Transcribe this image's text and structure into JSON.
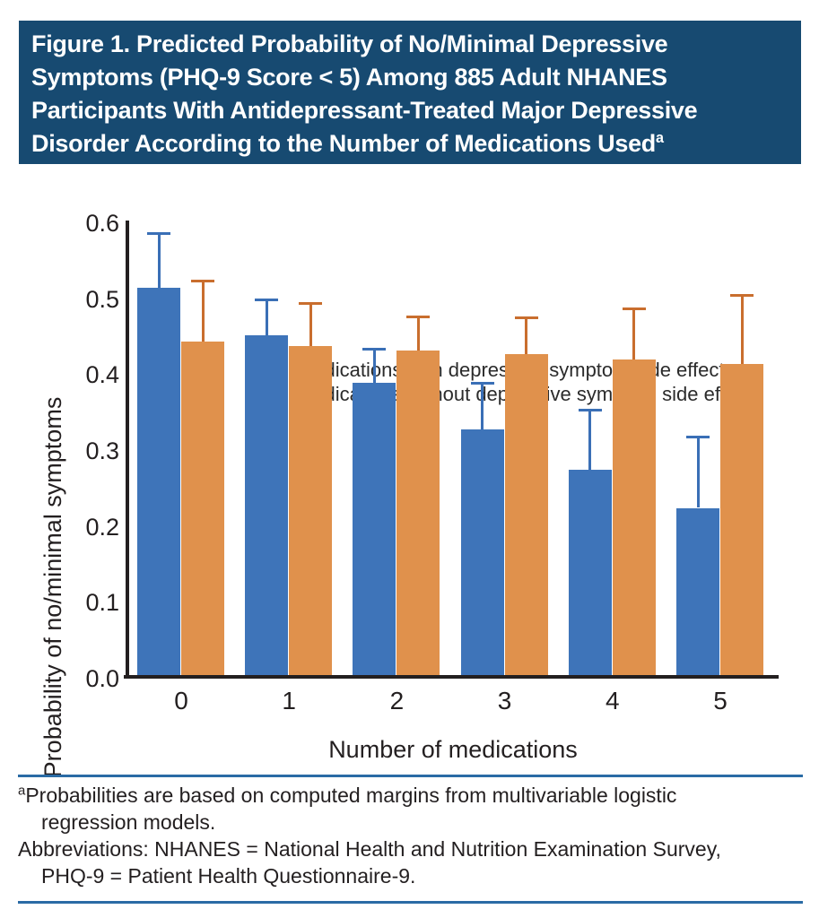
{
  "header": {
    "title": "Figure 1. Predicted Probability of No/Minimal Depressive Symptoms (PHQ-9 Score < 5) Among 885 Adult NHANES Participants With Antidepressant-Treated Major Depressive Disorder According to the Number of Medications Used",
    "title_superscript": "a"
  },
  "chart_data": {
    "type": "bar",
    "title": "",
    "categories": [
      "0",
      "1",
      "2",
      "3",
      "4",
      "5"
    ],
    "xlabel": "Number of medications",
    "ylabel": "Probability of no/minimal symptoms",
    "ylim": [
      0,
      0.6
    ],
    "ytick_labels": [
      "0.0",
      "0.1",
      "0.2",
      "0.3",
      "0.4",
      "0.5",
      "0.6"
    ],
    "ytick_values": [
      0,
      0.1,
      0.2,
      0.3,
      0.4,
      0.5,
      0.6
    ],
    "grid": false,
    "legend_position": "top",
    "error_bars": "upper only, 95% CI caps",
    "series": [
      {
        "name": "Medications with depressive symptom side effects",
        "color": "#3e74b9",
        "error_color": "#3a6fb6",
        "values": [
          0.515,
          0.452,
          0.39,
          0.328,
          0.275,
          0.225
        ],
        "upper_ci": [
          0.586,
          0.499,
          0.433,
          0.389,
          0.353,
          0.318
        ]
      },
      {
        "name": "Medications without depressive symptom side effects",
        "color": "#e0914c",
        "error_color": "#c96e2e",
        "values": [
          0.444,
          0.438,
          0.432,
          0.427,
          0.421,
          0.415
        ],
        "upper_ci": [
          0.523,
          0.494,
          0.476,
          0.475,
          0.487,
          0.504
        ]
      }
    ]
  },
  "footnotes": {
    "note_marker": "a",
    "note_text": "Probabilities are based on computed margins from multivariable logistic regression models.",
    "abbreviations": "Abbreviations: NHANES = National Health and Nutrition Examination Survey, PHQ-9 = Patient Health Questionnaire-9."
  },
  "colors": {
    "header_bg": "#174a71",
    "header_text": "#ffffff",
    "rule": "#2a6ba5",
    "axis": "#231f20",
    "text": "#231f20"
  }
}
